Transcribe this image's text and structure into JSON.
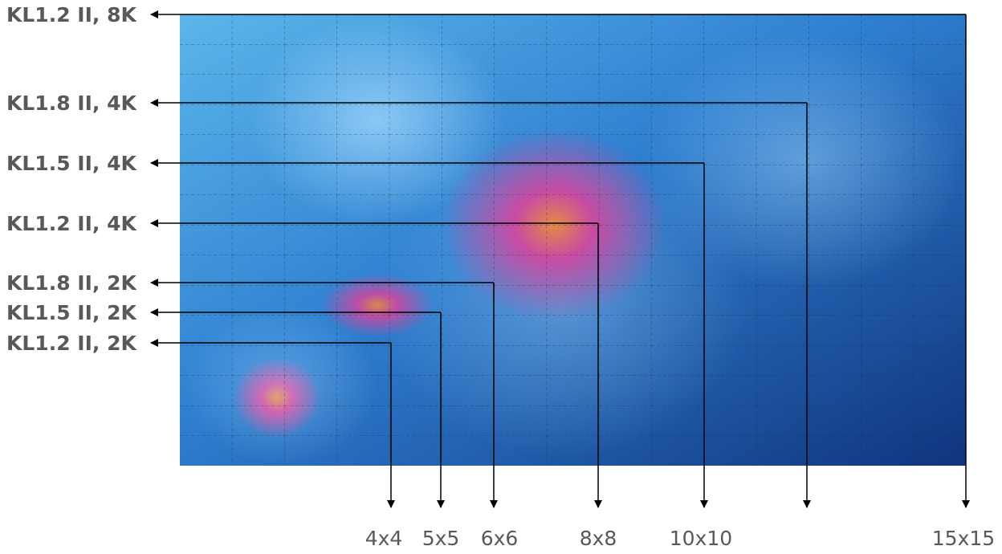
{
  "rows": [
    {
      "label": "KL1.2 II, 8K"
    },
    {
      "label": "KL1.8 II, 4K"
    },
    {
      "label": "KL1.5 II, 4K"
    },
    {
      "label": "KL1.2 II, 4K"
    },
    {
      "label": "KL1.8 II, 2K"
    },
    {
      "label": "KL1.5 II, 2K"
    },
    {
      "label": "KL1.2 II, 2K"
    }
  ],
  "sizes": [
    "4x4",
    "5x5",
    "6x6",
    "8x8",
    "10x10",
    "15x15"
  ]
}
